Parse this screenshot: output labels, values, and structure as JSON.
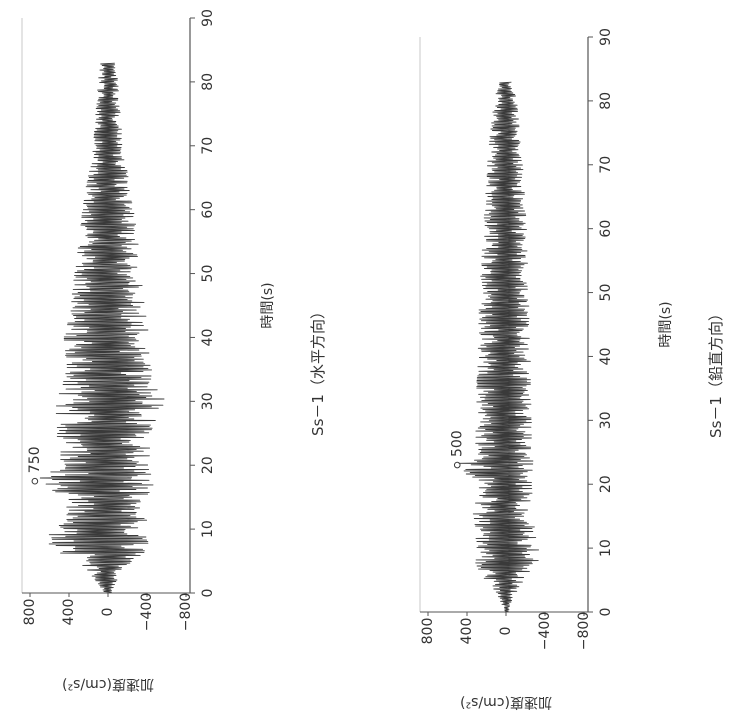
{
  "colors": {
    "trace": "#3a3a3a",
    "axis": "#555555",
    "background": "#ffffff"
  },
  "chart_data": [
    {
      "type": "line",
      "caption": "Ss－1（水平方向）",
      "xlabel": "時間(s)",
      "ylabel": "加速度(cm/s²)",
      "xlim": [
        0,
        90
      ],
      "ylim": [
        -800,
        800
      ],
      "x_ticks": [
        "0",
        "10",
        "20",
        "30",
        "40",
        "50",
        "60",
        "70",
        "80",
        "90"
      ],
      "y_ticks": [
        "800",
        "400",
        "0",
        "−400",
        "−800"
      ],
      "peak_label": "750",
      "peak": {
        "x": 17.5,
        "y": 750
      },
      "series": [
        {
          "x": [
            0,
            3,
            5,
            7,
            9,
            11,
            13,
            15,
            17.5,
            20,
            23,
            26,
            30,
            33,
            36,
            40,
            44,
            48,
            52,
            56,
            60,
            64,
            68,
            72,
            76,
            80,
            83
          ],
          "ymax": [
            30,
            180,
            300,
            600,
            610,
            470,
            420,
            430,
            750,
            470,
            520,
            520,
            540,
            470,
            430,
            450,
            380,
            360,
            320,
            290,
            260,
            220,
            160,
            140,
            120,
            100,
            80
          ],
          "ymin": [
            -30,
            -120,
            -260,
            -420,
            -450,
            -400,
            -380,
            -400,
            -480,
            -420,
            -430,
            -460,
            -600,
            -470,
            -440,
            -430,
            -380,
            -350,
            -330,
            -300,
            -260,
            -220,
            -170,
            -140,
            -120,
            -100,
            -80
          ]
        }
      ]
    },
    {
      "type": "line",
      "caption": "Ss－1（鉛直方向）",
      "xlabel": "時間(s)",
      "ylabel": "加速度(cm/s²)",
      "xlim": [
        0,
        90
      ],
      "ylim": [
        -800,
        800
      ],
      "x_ticks": [
        "0",
        "10",
        "20",
        "30",
        "40",
        "50",
        "60",
        "70",
        "80",
        "90"
      ],
      "y_ticks": [
        "800",
        "400",
        "0",
        "−400",
        "−800"
      ],
      "peak_label": "500",
      "peak": {
        "x": 23,
        "y": 500
      },
      "series": [
        {
          "x": [
            0,
            3,
            6,
            8,
            10,
            12,
            15,
            18,
            20,
            23,
            26,
            30,
            35,
            40,
            45,
            50,
            55,
            60,
            65,
            70,
            75,
            80,
            83
          ],
          "ymax": [
            20,
            110,
            260,
            320,
            330,
            300,
            340,
            300,
            300,
            500,
            320,
            300,
            300,
            290,
            280,
            270,
            250,
            230,
            210,
            190,
            160,
            120,
            70
          ],
          "ymin": [
            -20,
            -110,
            -220,
            -330,
            -350,
            -300,
            -280,
            -270,
            -260,
            -280,
            -260,
            -260,
            -250,
            -250,
            -240,
            -230,
            -220,
            -210,
            -190,
            -170,
            -140,
            -110,
            -60
          ]
        }
      ]
    }
  ]
}
